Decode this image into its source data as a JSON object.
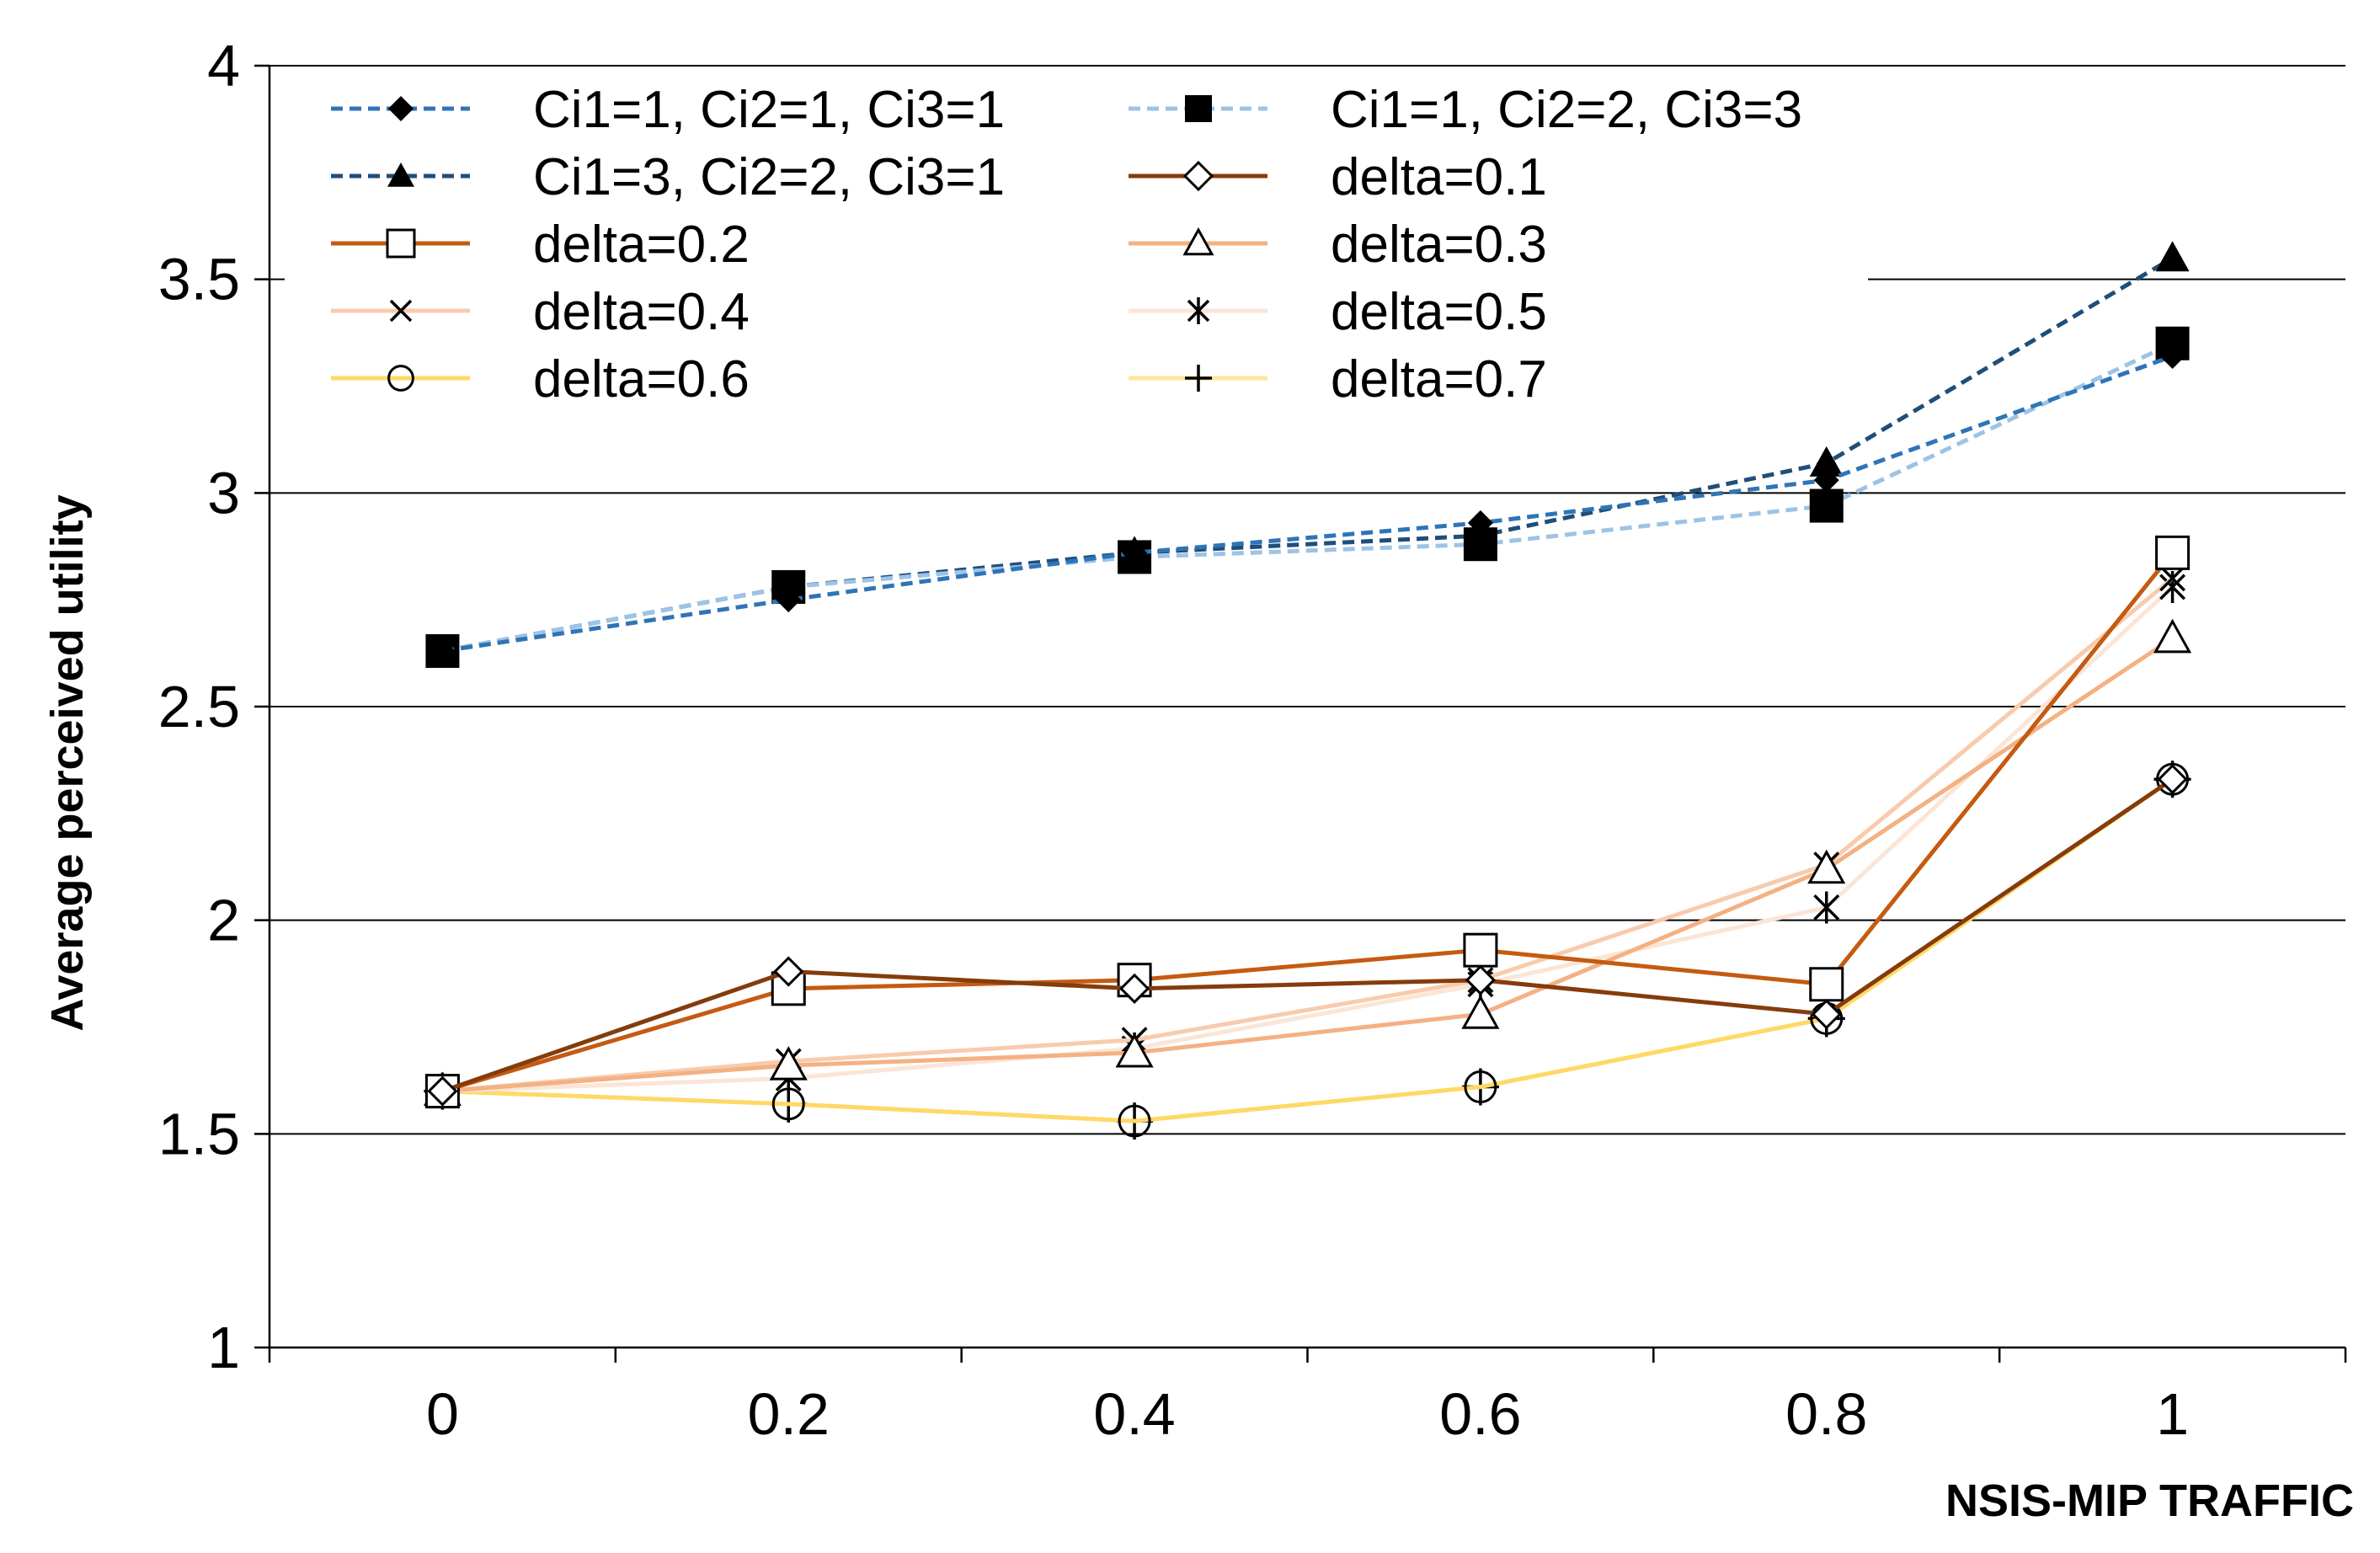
{
  "chart_data": {
    "type": "line",
    "title": "",
    "xlabel": "NSIS-MIP TRAFFIC",
    "ylabel": "Average perceived utility",
    "x": [
      0,
      0.2,
      0.4,
      0.6,
      0.8,
      1
    ],
    "x_tick_labels": [
      "0",
      "0.2",
      "0.4",
      "0.6",
      "0.8",
      "1"
    ],
    "xlim": [
      -0.1,
      1.1
    ],
    "ylim": [
      1,
      4
    ],
    "y_ticks": [
      1,
      1.5,
      2,
      2.5,
      3,
      3.5,
      4
    ],
    "y_tick_labels": [
      "1",
      "1.5",
      "2",
      "2.5",
      "3",
      "3.5",
      "4"
    ],
    "grid": true,
    "legend_position": "top-left",
    "series": [
      {
        "name": "Ci1=1, Ci2=1, Ci3=1",
        "color": "#2e75b6",
        "dashed": true,
        "marker": "diamond-filled",
        "values": [
          2.63,
          2.75,
          2.86,
          2.93,
          3.03,
          3.32
        ]
      },
      {
        "name": "Ci1=1, Ci2=2, Ci3=3",
        "color": "#9dc3e6",
        "dashed": true,
        "marker": "square-filled",
        "values": [
          2.63,
          2.78,
          2.85,
          2.88,
          2.97,
          3.35
        ]
      },
      {
        "name": "Ci1=3, Ci2=2, Ci3=1",
        "color": "#1f4e79",
        "dashed": true,
        "marker": "triangle-filled",
        "values": [
          2.63,
          2.78,
          2.86,
          2.9,
          3.07,
          3.55
        ]
      },
      {
        "name": "delta=0.1",
        "color": "#843c0c",
        "dashed": false,
        "marker": "diamond-open",
        "values": [
          1.6,
          1.88,
          1.84,
          1.86,
          1.78,
          2.33
        ]
      },
      {
        "name": "delta=0.2",
        "color": "#c55a11",
        "dashed": false,
        "marker": "square-open",
        "values": [
          1.6,
          1.84,
          1.86,
          1.93,
          1.85,
          2.86
        ]
      },
      {
        "name": "delta=0.3",
        "color": "#f4b183",
        "dashed": false,
        "marker": "triangle-open",
        "values": [
          1.6,
          1.66,
          1.69,
          1.78,
          2.12,
          2.66
        ]
      },
      {
        "name": "delta=0.4",
        "color": "#f8cbad",
        "dashed": false,
        "marker": "x",
        "values": [
          1.6,
          1.67,
          1.72,
          1.86,
          2.13,
          2.8
        ]
      },
      {
        "name": "delta=0.5",
        "color": "#fbe5d6",
        "dashed": false,
        "marker": "asterisk",
        "values": [
          1.6,
          1.63,
          1.7,
          1.85,
          2.03,
          2.78
        ]
      },
      {
        "name": "delta=0.6",
        "color": "#ffd966",
        "dashed": false,
        "marker": "circle-open",
        "values": [
          1.6,
          1.57,
          1.53,
          1.61,
          1.77,
          2.33
        ]
      },
      {
        "name": "delta=0.7",
        "color": "#ffe699",
        "dashed": false,
        "marker": "plus",
        "values": [
          1.6,
          1.57,
          1.53,
          1.61,
          1.77,
          2.33
        ]
      }
    ]
  }
}
